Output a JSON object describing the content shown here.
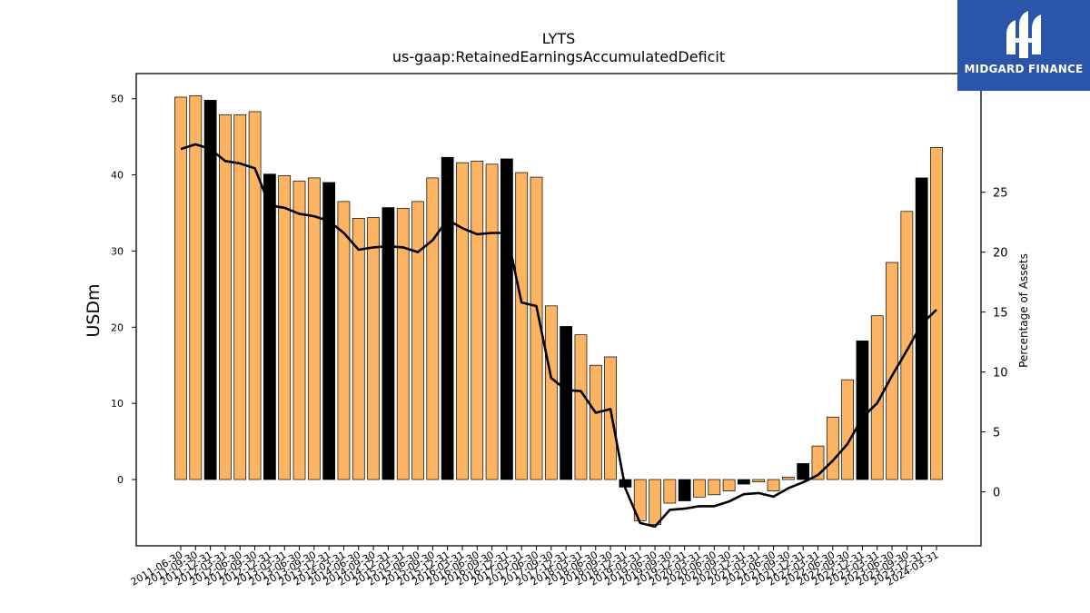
{
  "chart_data": {
    "type": "bar",
    "title": "LYTS",
    "subtitle": "us-gaap:RetainedEarningsAccumulatedDeficit",
    "ylabel": "USDm",
    "y2label": "Percentage of Assets",
    "ylim": [
      -8.7,
      53.3
    ],
    "y2lim": [
      -4.5,
      34.9
    ],
    "yticks": [
      0,
      10,
      20,
      30,
      40,
      50
    ],
    "y2ticks": [
      0,
      5,
      10,
      15,
      20,
      25
    ],
    "bar_color": "#FDB462",
    "highlight_color": "#000000",
    "line_color": "#000000",
    "grid": false,
    "categories": [
      "2011-06-30",
      "2011-09-30",
      "2011-12-31",
      "2012-03-31",
      "2012-06-30",
      "2012-09-30",
      "2012-12-31",
      "2013-03-31",
      "2013-06-30",
      "2013-09-30",
      "2013-12-31",
      "2014-03-31",
      "2014-06-30",
      "2014-09-30",
      "2014-12-31",
      "2015-03-31",
      "2015-06-30",
      "2015-09-30",
      "2015-12-31",
      "2016-03-31",
      "2016-06-30",
      "2016-09-30",
      "2016-12-31",
      "2017-03-31",
      "2017-06-30",
      "2017-09-30",
      "2017-12-31",
      "2018-03-31",
      "2018-06-30",
      "2018-09-30",
      "2018-12-31",
      "2019-03-31",
      "2019-06-30",
      "2019-09-30",
      "2019-12-31",
      "2020-03-31",
      "2020-06-30",
      "2020-09-30",
      "2020-12-31",
      "2021-03-31",
      "2021-06-30",
      "2021-09-30",
      "2021-12-31",
      "2022-03-31",
      "2022-06-30",
      "2022-09-30",
      "2022-12-31",
      "2023-03-31",
      "2023-06-30",
      "2023-09-30",
      "2023-12-31",
      "2024-03-31"
    ],
    "series": [
      {
        "type": "bar",
        "values": [
          50.2,
          50.4,
          49.8,
          47.9,
          47.9,
          48.3,
          40.1,
          39.9,
          39.2,
          39.6,
          39.0,
          36.5,
          34.3,
          34.4,
          35.7,
          35.6,
          36.5,
          39.6,
          42.3,
          41.6,
          41.8,
          41.4,
          42.1,
          40.3,
          39.7,
          22.8,
          20.1,
          19.0,
          15.0,
          16.1,
          -1.0,
          -5.4,
          -5.9,
          -3.1,
          -2.8,
          -2.3,
          -2.0,
          -1.5,
          -0.6,
          -0.3,
          -1.5,
          0.3,
          2.1,
          4.4,
          8.2,
          13.1,
          18.2,
          21.5,
          28.5,
          35.2,
          39.6,
          43.6
        ],
        "highlight": [
          2,
          6,
          10,
          14,
          18,
          22,
          26,
          30,
          34,
          38,
          42,
          46,
          50
        ]
      },
      {
        "type": "line",
        "axis": "y2",
        "values": [
          28.6,
          29.0,
          28.6,
          27.6,
          27.4,
          27.0,
          23.9,
          23.7,
          23.2,
          23.0,
          22.6,
          21.6,
          20.2,
          20.4,
          20.5,
          20.4,
          20.0,
          21.0,
          22.7,
          22.0,
          21.5,
          21.6,
          21.6,
          15.8,
          15.5,
          9.5,
          8.5,
          8.4,
          6.6,
          6.9,
          0.3,
          -2.6,
          -2.9,
          -1.5,
          -1.4,
          -1.2,
          -1.2,
          -0.8,
          -0.2,
          -0.1,
          -0.4,
          0.3,
          0.8,
          1.4,
          2.6,
          4.0,
          6.2,
          7.4,
          9.7,
          11.8,
          14.0,
          15.2
        ]
      }
    ]
  },
  "logo": {
    "text": "MIDGARD FINANCE",
    "brand_color": "#2a55a8",
    "icon": "midgard-logo-icon"
  }
}
